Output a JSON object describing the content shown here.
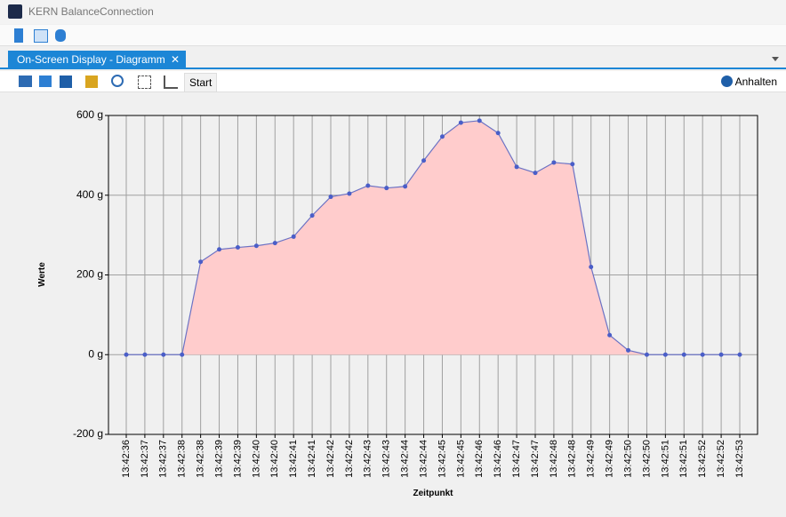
{
  "app": {
    "title": "KERN BalanceConnection"
  },
  "tab": {
    "title": "On-Screen Display - Diagramm"
  },
  "toolbar": {
    "start": "Start",
    "pause": "Anhalten"
  },
  "chart_data": {
    "type": "area",
    "x_label": "Zeitpunkt",
    "y_label": "Werte",
    "categories": [
      "13:42:36",
      "13:42:37",
      "13:42:37",
      "13:42:38",
      "13:42:38",
      "13:42:39",
      "13:42:39",
      "13:42:40",
      "13:42:40",
      "13:42:41",
      "13:42:41",
      "13:42:42",
      "13:42:42",
      "13:42:43",
      "13:42:43",
      "13:42:44",
      "13:42:44",
      "13:42:45",
      "13:42:45",
      "13:42:46",
      "13:42:46",
      "13:42:47",
      "13:42:47",
      "13:42:48",
      "13:42:48",
      "13:42:49",
      "13:42:49",
      "13:42:50",
      "13:42:50",
      "13:42:51",
      "13:42:51",
      "13:42:52",
      "13:42:52",
      "13:42:53"
    ],
    "values": [
      0,
      0,
      0,
      0,
      233,
      264,
      269,
      273,
      280,
      296,
      349,
      396,
      404,
      424,
      418,
      422,
      487,
      547,
      582,
      587,
      556,
      471,
      456,
      482,
      478,
      220,
      49,
      11,
      0,
      0,
      0,
      0,
      0,
      0
    ],
    "color": "#6b72c4",
    "fill_color": "#ffcccc",
    "marker_color": "#4a5ec8",
    "ylim": [
      -200,
      600
    ],
    "yticks": [
      {
        "value": -200,
        "label": "-200 g"
      },
      {
        "value": 0,
        "label": "0 g"
      },
      {
        "value": 200,
        "label": "200 g"
      },
      {
        "value": 400,
        "label": "400 g"
      },
      {
        "value": 600,
        "label": "600 g"
      }
    ],
    "grid": true
  }
}
